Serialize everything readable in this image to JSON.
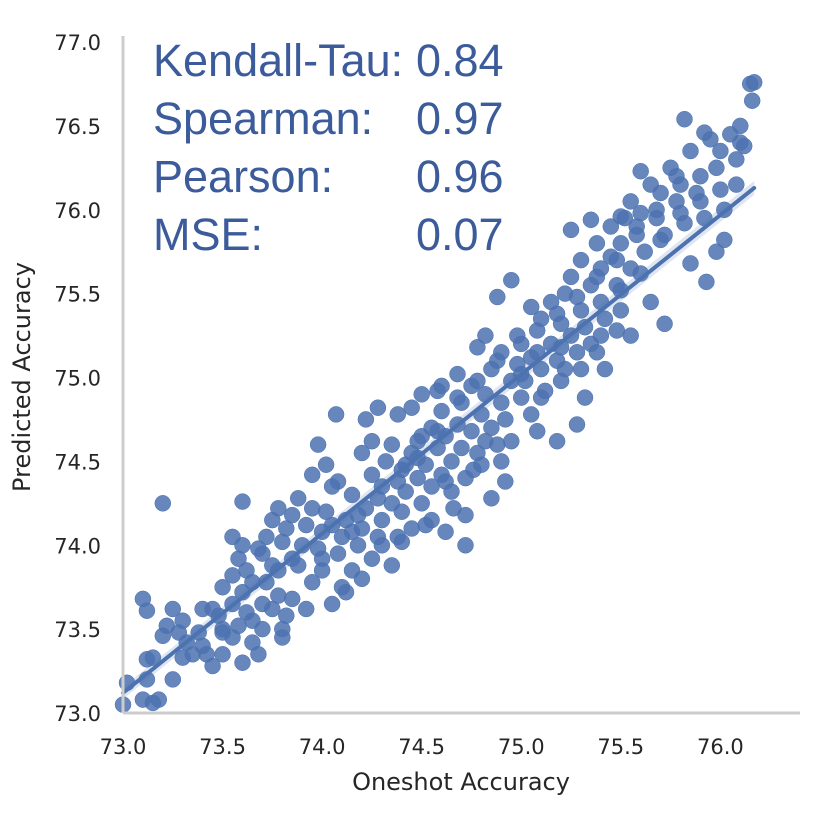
{
  "chart_data": {
    "type": "scatter",
    "xlabel": "Oneshot Accuracy",
    "ylabel": "Predicted Accuracy",
    "xlim": [
      73.0,
      76.4
    ],
    "ylim": [
      73.0,
      77.0
    ],
    "x_ticks": [
      "73.0",
      "73.5",
      "74.0",
      "74.5",
      "75.0",
      "75.5",
      "76.0"
    ],
    "y_ticks": [
      "73.0",
      "73.5",
      "74.0",
      "74.5",
      "75.0",
      "75.5",
      "76.0",
      "76.5",
      "77.0"
    ],
    "grid": false,
    "stats": [
      {
        "label": "Kendall-Tau:",
        "value": "0.84"
      },
      {
        "label": "Spearman:",
        "value": "0.97"
      },
      {
        "label": "Pearson:",
        "value": "0.96"
      },
      {
        "label": "MSE:",
        "value": "0.07"
      }
    ],
    "regression": {
      "x": [
        73.0,
        76.17
      ],
      "y": [
        73.12,
        76.13
      ]
    },
    "point_color": "#4c72b0",
    "line_color": "#4c72b0",
    "points": [
      [
        73.0,
        73.05
      ],
      [
        73.02,
        73.18
      ],
      [
        73.1,
        73.08
      ],
      [
        73.12,
        73.2
      ],
      [
        73.15,
        73.06
      ],
      [
        73.18,
        73.08
      ],
      [
        73.12,
        73.32
      ],
      [
        73.15,
        73.33
      ],
      [
        73.1,
        73.68
      ],
      [
        73.12,
        73.61
      ],
      [
        73.2,
        73.46
      ],
      [
        73.2,
        74.25
      ],
      [
        73.25,
        73.62
      ],
      [
        73.3,
        73.55
      ],
      [
        73.28,
        73.48
      ],
      [
        73.32,
        73.42
      ],
      [
        73.35,
        73.35
      ],
      [
        73.3,
        73.33
      ],
      [
        73.38,
        73.48
      ],
      [
        73.4,
        73.4
      ],
      [
        73.45,
        73.62
      ],
      [
        73.48,
        73.58
      ],
      [
        73.5,
        73.5
      ],
      [
        73.5,
        73.35
      ],
      [
        73.42,
        73.35
      ],
      [
        73.55,
        73.65
      ],
      [
        73.55,
        73.45
      ],
      [
        73.6,
        73.3
      ],
      [
        73.6,
        73.72
      ],
      [
        73.62,
        73.6
      ],
      [
        73.65,
        73.55
      ],
      [
        73.65,
        73.42
      ],
      [
        73.7,
        73.65
      ],
      [
        73.7,
        73.5
      ],
      [
        73.72,
        73.78
      ],
      [
        73.75,
        73.62
      ],
      [
        73.78,
        73.7
      ],
      [
        73.8,
        73.5
      ],
      [
        73.82,
        73.58
      ],
      [
        73.85,
        73.68
      ],
      [
        73.8,
        73.45
      ],
      [
        73.5,
        73.75
      ],
      [
        73.55,
        73.82
      ],
      [
        73.58,
        73.92
      ],
      [
        73.6,
        74.0
      ],
      [
        73.62,
        73.85
      ],
      [
        73.65,
        73.78
      ],
      [
        73.7,
        73.95
      ],
      [
        73.72,
        74.05
      ],
      [
        73.75,
        74.15
      ],
      [
        73.78,
        73.85
      ],
      [
        73.8,
        74.02
      ],
      [
        73.82,
        74.1
      ],
      [
        73.85,
        74.18
      ],
      [
        73.88,
        73.88
      ],
      [
        73.9,
        74.0
      ],
      [
        73.92,
        74.12
      ],
      [
        73.95,
        74.22
      ],
      [
        73.95,
        73.78
      ],
      [
        73.98,
        73.98
      ],
      [
        74.0,
        74.08
      ],
      [
        74.0,
        73.85
      ],
      [
        74.02,
        74.2
      ],
      [
        74.05,
        74.35
      ],
      [
        74.05,
        73.65
      ],
      [
        74.08,
        73.95
      ],
      [
        74.1,
        74.05
      ],
      [
        74.1,
        73.75
      ],
      [
        74.12,
        74.15
      ],
      [
        74.15,
        74.3
      ],
      [
        74.15,
        73.85
      ],
      [
        74.18,
        74.0
      ],
      [
        74.2,
        74.1
      ],
      [
        74.2,
        73.8
      ],
      [
        74.22,
        74.22
      ],
      [
        74.25,
        74.42
      ],
      [
        74.25,
        73.92
      ],
      [
        74.28,
        74.05
      ],
      [
        74.3,
        74.15
      ],
      [
        74.3,
        74.35
      ],
      [
        74.32,
        74.5
      ],
      [
        74.35,
        74.25
      ],
      [
        74.35,
        73.88
      ],
      [
        74.38,
        74.05
      ],
      [
        74.4,
        74.2
      ],
      [
        74.4,
        74.45
      ],
      [
        74.42,
        74.32
      ],
      [
        74.45,
        74.1
      ],
      [
        74.45,
        74.55
      ],
      [
        74.48,
        74.4
      ],
      [
        74.5,
        74.25
      ],
      [
        74.5,
        74.65
      ],
      [
        74.52,
        74.48
      ],
      [
        74.55,
        74.35
      ],
      [
        74.55,
        74.7
      ],
      [
        74.58,
        74.58
      ],
      [
        74.6,
        74.42
      ],
      [
        74.6,
        74.8
      ],
      [
        74.62,
        74.65
      ],
      [
        74.65,
        74.5
      ],
      [
        74.65,
        74.32
      ],
      [
        74.68,
        74.72
      ],
      [
        74.7,
        74.58
      ],
      [
        74.7,
        74.85
      ],
      [
        74.72,
        74.4
      ],
      [
        74.75,
        74.68
      ],
      [
        74.75,
        74.95
      ],
      [
        74.78,
        74.55
      ],
      [
        74.8,
        74.78
      ],
      [
        74.8,
        74.48
      ],
      [
        74.82,
        74.9
      ],
      [
        74.85,
        74.7
      ],
      [
        74.85,
        75.05
      ],
      [
        74.88,
        74.6
      ],
      [
        74.9,
        74.85
      ],
      [
        74.9,
        75.15
      ],
      [
        74.92,
        74.75
      ],
      [
        74.95,
        74.98
      ],
      [
        74.95,
        74.62
      ],
      [
        74.98,
        75.08
      ],
      [
        75.0,
        74.88
      ],
      [
        75.0,
        75.2
      ],
      [
        75.02,
        74.98
      ],
      [
        75.05,
        75.12
      ],
      [
        75.05,
        74.78
      ],
      [
        75.08,
        75.28
      ],
      [
        75.1,
        75.05
      ],
      [
        75.1,
        75.35
      ],
      [
        75.12,
        74.92
      ],
      [
        75.15,
        75.2
      ],
      [
        75.15,
        75.45
      ],
      [
        75.18,
        75.1
      ],
      [
        75.2,
        75.32
      ],
      [
        75.2,
        74.98
      ],
      [
        75.22,
        75.5
      ],
      [
        75.25,
        75.25
      ],
      [
        75.25,
        75.6
      ],
      [
        75.28,
        75.15
      ],
      [
        75.3,
        75.4
      ],
      [
        75.3,
        75.7
      ],
      [
        75.32,
        75.3
      ],
      [
        75.35,
        75.55
      ],
      [
        75.35,
        75.2
      ],
      [
        75.38,
        75.8
      ],
      [
        75.4,
        75.45
      ],
      [
        75.4,
        75.65
      ],
      [
        75.42,
        75.35
      ],
      [
        75.45,
        75.72
      ],
      [
        75.45,
        75.9
      ],
      [
        75.48,
        75.55
      ],
      [
        75.5,
        75.8
      ],
      [
        75.5,
        75.4
      ],
      [
        75.52,
        75.95
      ],
      [
        75.55,
        75.65
      ],
      [
        75.55,
        76.05
      ],
      [
        75.58,
        75.85
      ],
      [
        75.6,
        75.98
      ],
      [
        75.62,
        75.75
      ],
      [
        75.65,
        76.15
      ],
      [
        75.68,
        75.95
      ],
      [
        75.7,
        76.1
      ],
      [
        75.72,
        75.85
      ],
      [
        75.75,
        76.25
      ],
      [
        75.78,
        76.05
      ],
      [
        75.8,
        76.15
      ],
      [
        75.82,
        75.92
      ],
      [
        75.85,
        76.35
      ],
      [
        75.88,
        76.1
      ],
      [
        75.9,
        76.2
      ],
      [
        75.92,
        75.95
      ],
      [
        75.95,
        76.42
      ],
      [
        75.98,
        76.25
      ],
      [
        76.0,
        76.35
      ],
      [
        76.02,
        76.0
      ],
      [
        76.05,
        76.45
      ],
      [
        76.08,
        76.3
      ],
      [
        76.1,
        76.5
      ],
      [
        76.12,
        76.38
      ],
      [
        76.15,
        76.75
      ],
      [
        76.17,
        76.76
      ],
      [
        76.16,
        76.65
      ],
      [
        75.82,
        76.54
      ],
      [
        75.6,
        76.23
      ],
      [
        75.92,
        76.46
      ],
      [
        75.93,
        75.57
      ],
      [
        76.02,
        75.82
      ],
      [
        75.5,
        75.96
      ],
      [
        75.35,
        75.94
      ],
      [
        75.25,
        75.88
      ],
      [
        74.95,
        75.58
      ],
      [
        74.88,
        75.48
      ],
      [
        74.82,
        75.25
      ],
      [
        74.78,
        75.18
      ],
      [
        74.68,
        75.02
      ],
      [
        74.6,
        74.95
      ],
      [
        74.5,
        74.9
      ],
      [
        74.28,
        74.82
      ],
      [
        74.2,
        74.55
      ],
      [
        74.22,
        74.75
      ],
      [
        74.07,
        74.78
      ],
      [
        73.98,
        74.6
      ],
      [
        73.6,
        74.26
      ],
      [
        73.55,
        74.05
      ],
      [
        73.4,
        73.62
      ],
      [
        73.25,
        73.2
      ],
      [
        73.22,
        73.52
      ],
      [
        73.5,
        73.48
      ],
      [
        74.0,
        73.92
      ],
      [
        74.12,
        73.72
      ],
      [
        74.35,
        74.6
      ],
      [
        74.45,
        74.82
      ],
      [
        74.55,
        74.15
      ],
      [
        74.62,
        74.08
      ],
      [
        74.72,
        74.0
      ],
      [
        74.85,
        74.28
      ],
      [
        75.05,
        75.42
      ],
      [
        75.18,
        74.62
      ],
      [
        75.28,
        74.72
      ],
      [
        75.32,
        74.88
      ],
      [
        75.42,
        75.05
      ],
      [
        75.55,
        75.25
      ],
      [
        75.65,
        75.45
      ],
      [
        75.72,
        75.32
      ],
      [
        75.85,
        75.68
      ],
      [
        75.98,
        75.75
      ],
      [
        76.08,
        76.15
      ],
      [
        74.4,
        74.02
      ],
      [
        74.48,
        74.62
      ],
      [
        74.58,
        74.92
      ],
      [
        74.66,
        74.22
      ],
      [
        74.76,
        74.45
      ],
      [
        74.92,
        74.38
      ],
      [
        75.08,
        74.68
      ],
      [
        75.22,
        75.05
      ],
      [
        75.38,
        75.15
      ],
      [
        75.48,
        75.28
      ],
      [
        74.38,
        74.78
      ],
      [
        74.3,
        74.0
      ],
      [
        74.18,
        74.18
      ],
      [
        74.08,
        74.38
      ],
      [
        73.95,
        74.42
      ],
      [
        73.88,
        74.28
      ],
      [
        73.78,
        74.22
      ],
      [
        73.68,
        73.98
      ],
      [
        73.92,
        73.62
      ],
      [
        74.02,
        74.48
      ],
      [
        74.25,
        74.62
      ],
      [
        74.42,
        74.48
      ],
      [
        74.52,
        74.12
      ],
      [
        74.62,
        74.38
      ],
      [
        74.72,
        74.18
      ],
      [
        74.82,
        74.62
      ],
      [
        74.9,
        74.5
      ],
      [
        75.0,
        75.02
      ],
      [
        75.1,
        74.88
      ],
      [
        75.2,
        75.18
      ],
      [
        75.3,
        75.05
      ],
      [
        75.4,
        75.25
      ],
      [
        75.5,
        75.52
      ],
      [
        75.6,
        75.62
      ],
      [
        75.7,
        75.82
      ],
      [
        75.8,
        75.98
      ],
      [
        75.9,
        76.05
      ],
      [
        76.0,
        76.12
      ],
      [
        76.1,
        76.4
      ],
      [
        73.45,
        73.28
      ],
      [
        73.58,
        73.52
      ],
      [
        73.68,
        73.35
      ],
      [
        73.75,
        73.88
      ],
      [
        73.85,
        73.92
      ],
      [
        74.05,
        74.12
      ],
      [
        74.15,
        74.08
      ],
      [
        74.28,
        74.28
      ],
      [
        74.38,
        74.38
      ],
      [
        74.48,
        74.52
      ],
      [
        74.58,
        74.68
      ],
      [
        74.68,
        74.88
      ],
      [
        74.78,
        74.98
      ],
      [
        74.88,
        75.1
      ],
      [
        74.98,
        75.25
      ],
      [
        75.08,
        75.15
      ],
      [
        75.18,
        75.38
      ],
      [
        75.28,
        75.48
      ],
      [
        75.38,
        75.6
      ],
      [
        75.48,
        75.7
      ],
      [
        75.58,
        75.9
      ],
      [
        75.68,
        76.0
      ],
      [
        75.78,
        76.2
      ]
    ]
  }
}
